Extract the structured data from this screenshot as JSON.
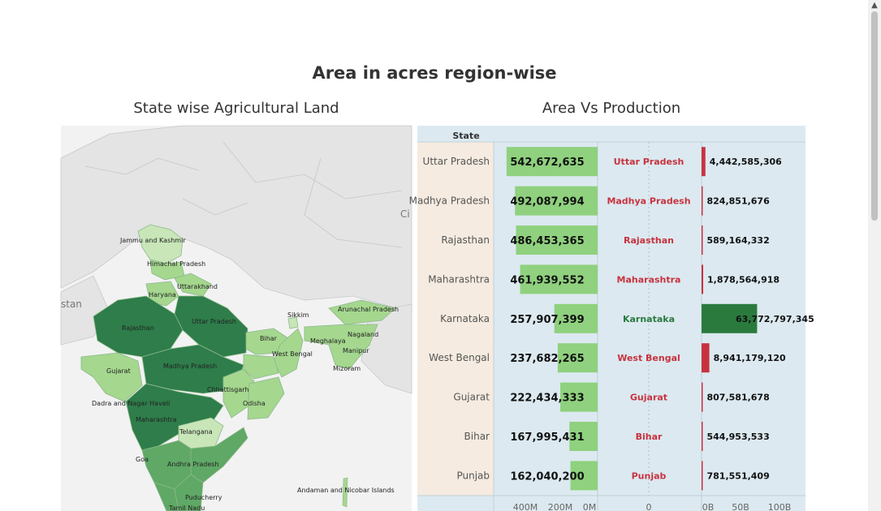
{
  "page": {
    "title": "Area in acres region-wise",
    "map_title": "State wise Agricultural Land",
    "chart_title": "Area Vs Production"
  },
  "map": {
    "labels": [
      {
        "name": "Jammu and Kashmir"
      },
      {
        "name": "Himachal Pradesh"
      },
      {
        "name": "Uttarakhand"
      },
      {
        "name": "Haryana"
      },
      {
        "name": "Uttar Pradesh"
      },
      {
        "name": "Rajasthan"
      },
      {
        "name": "Bihar"
      },
      {
        "name": "Sikkim"
      },
      {
        "name": "Arunachal Pradesh"
      },
      {
        "name": "Nagaland"
      },
      {
        "name": "Meghalaya"
      },
      {
        "name": "Manipur"
      },
      {
        "name": "West Bengal"
      },
      {
        "name": "Mizoram"
      },
      {
        "name": "Gujarat"
      },
      {
        "name": "Madhya Pradesh"
      },
      {
        "name": "Chhattisgarh"
      },
      {
        "name": "Dadra and Nagar Haveli"
      },
      {
        "name": "Odisha"
      },
      {
        "name": "Maharashtra"
      },
      {
        "name": "Telangana"
      },
      {
        "name": "Goa"
      },
      {
        "name": "Andhra Pradesh"
      },
      {
        "name": "Puducherry"
      },
      {
        "name": "Tamil Nadu"
      },
      {
        "name": "Andaman and Nicobar Islands"
      },
      {
        "name": "Ci"
      },
      {
        "name": "stan"
      }
    ],
    "colors": {
      "water": "#ffffff",
      "land": "#e8e8e8",
      "border": "#bdbdbd",
      "dark": "#2e7d4a",
      "mid": "#5fa866",
      "light": "#a5d78f",
      "lighter": "#c8e6b8"
    }
  },
  "chart_data": {
    "type": "bar",
    "header": "State",
    "categories": [
      "Uttar Pradesh",
      "Madhya Pradesh",
      "Rajasthan",
      "Maharashtra",
      "Karnataka",
      "West Bengal",
      "Gujarat",
      "Bihar",
      "Punjab"
    ],
    "series": [
      {
        "values": [
          542672635,
          492087994,
          486453365,
          461939552,
          257907399,
          237682265,
          222434333,
          167995431,
          162040200
        ],
        "labels": [
          "542,672,635",
          "492,087,994",
          "486,453,365",
          "461,939,552",
          "257,907,399",
          "237,682,265",
          "222,434,333",
          "167,995,431",
          "162,040,200"
        ]
      },
      {
        "values": [
          4442585306,
          824851676,
          589164332,
          1878564918,
          63772797345,
          8941179120,
          807581678,
          544953533,
          781551409
        ],
        "labels": [
          "4,442,585,306",
          "824,851,676",
          "589,164,332",
          "1,878,564,918",
          "63,772,797,345",
          "8,941,179,120",
          "807,581,678",
          "544,953,533",
          "781,551,409"
        ]
      }
    ],
    "axes": {
      "area_ticks": [
        "400M",
        "200M",
        "0M"
      ],
      "mid_tick": "0",
      "production_ticks": [
        "0B",
        "50B",
        "100B"
      ],
      "area_xlim": [
        0,
        600000000
      ],
      "production_xlim": [
        0,
        110000000000
      ]
    },
    "highlight": "Karnataka",
    "colors": {
      "area_bar": "#8fd17e",
      "prod_bar": "#c8323f",
      "prod_highlight": "#2a7a3e",
      "state_text": "#c8323f",
      "state_highlight": "#2a7a3e",
      "label_bg": "#f5ebe0",
      "panel_bg": "#dce9f0"
    }
  }
}
